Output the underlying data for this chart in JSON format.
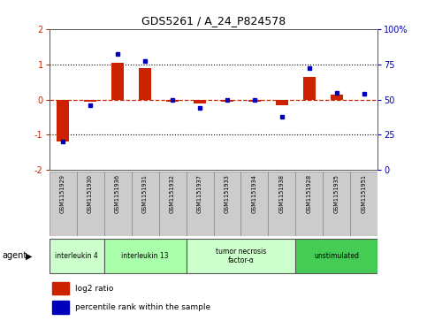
{
  "title": "GDS5261 / A_24_P824578",
  "samples": [
    "GSM1151929",
    "GSM1151930",
    "GSM1151936",
    "GSM1151931",
    "GSM1151932",
    "GSM1151937",
    "GSM1151933",
    "GSM1151934",
    "GSM1151938",
    "GSM1151928",
    "GSM1151935",
    "GSM1151951"
  ],
  "log2_ratio": [
    -1.2,
    -0.05,
    1.05,
    0.9,
    -0.05,
    -0.1,
    -0.05,
    -0.05,
    -0.15,
    0.65,
    0.15,
    0.0
  ],
  "percentile_rank": [
    20,
    46,
    82,
    77,
    50,
    44,
    50,
    50,
    38,
    72,
    55,
    54
  ],
  "agent_groups": [
    {
      "label": "interleukin 4",
      "start": 0,
      "end": 1,
      "color": "#ccffcc"
    },
    {
      "label": "interleukin 13",
      "start": 2,
      "end": 4,
      "color": "#aaffaa"
    },
    {
      "label": "tumor necrosis\nfactor-α",
      "start": 5,
      "end": 8,
      "color": "#ccffcc"
    },
    {
      "label": "unstimulated",
      "start": 9,
      "end": 11,
      "color": "#44cc55"
    }
  ],
  "bar_color_red": "#cc2200",
  "bar_color_blue": "#0000bb",
  "legend_red": "log2 ratio",
  "legend_blue": "percentile rank within the sample",
  "agent_label": "agent",
  "background_color": "#ffffff",
  "plot_bg_color": "#ffffff",
  "sample_box_color": "#cccccc",
  "sample_box_edge": "#888888"
}
